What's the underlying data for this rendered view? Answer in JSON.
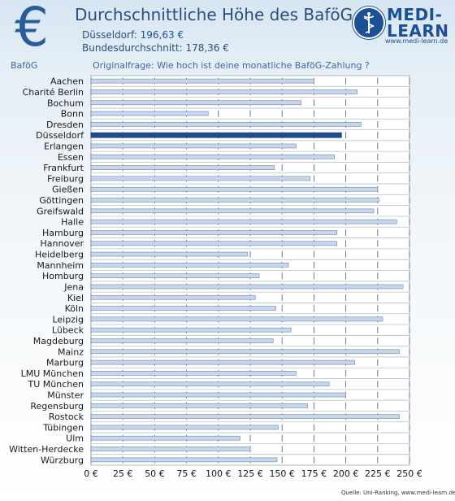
{
  "header": {
    "title": "Durchschnittliche Höhe des BaföG",
    "city_label": "Düsseldorf:",
    "city_value": "196,63 €",
    "average_text": "Bundesdurchschnitt: 178,36 €",
    "euro_icon": "euro-sign-icon"
  },
  "logo": {
    "line1": "MEDI-",
    "line2": "LEARN",
    "url": "www.medi-learn.de",
    "icon": "caduceus-icon"
  },
  "section_label": "BaföG",
  "question": "Originalfrage: Wie hoch ist deine monatliche BaföG-Zahlung ?",
  "source": "Quelle: Uni-Ranking, www.medi-learn.de",
  "colors": {
    "highlight": "#1f4b8f",
    "bar": "#c6d6ec",
    "bar_border": "#7f93ad",
    "text": "#2a4f7e"
  },
  "chart_data": {
    "type": "bar",
    "orientation": "horizontal",
    "title": "Durchschnittliche Höhe des BaföG",
    "highlight_category": "Düsseldorf",
    "categories": [
      "Aachen",
      "Charité Berlin",
      "Bochum",
      "Bonn",
      "Dresden",
      "Düsseldorf",
      "Erlangen",
      "Essen",
      "Frankfurt",
      "Freiburg",
      "Gießen",
      "Göttingen",
      "Greifswald",
      "Halle",
      "Hamburg",
      "Hannover",
      "Heidelberg",
      "Mannheim",
      "Homburg",
      "Jena",
      "Kiel",
      "Köln",
      "Leipzig",
      "Lübeck",
      "Magdeburg",
      "Mainz",
      "Marburg",
      "LMU München",
      "TU München",
      "Münster",
      "Regensburg",
      "Rostock",
      "Tübingen",
      "Ulm",
      "Witten-Herdecke",
      "Würzburg"
    ],
    "values": [
      175,
      209,
      165,
      92,
      212,
      196.63,
      161,
      191,
      144,
      172,
      225,
      226,
      222,
      240,
      193,
      193,
      123,
      155,
      132,
      245,
      129,
      145,
      229,
      157,
      143,
      242,
      207,
      161,
      187,
      200,
      170,
      242,
      147,
      117,
      125,
      146
    ],
    "xlim": [
      0,
      250
    ],
    "xticks": [
      "0 €",
      "25 €",
      "50 €",
      "75 €",
      "100 €",
      "125 €",
      "150 €",
      "175 €",
      "200 €",
      "225 €",
      "250 €"
    ],
    "grid": true
  }
}
